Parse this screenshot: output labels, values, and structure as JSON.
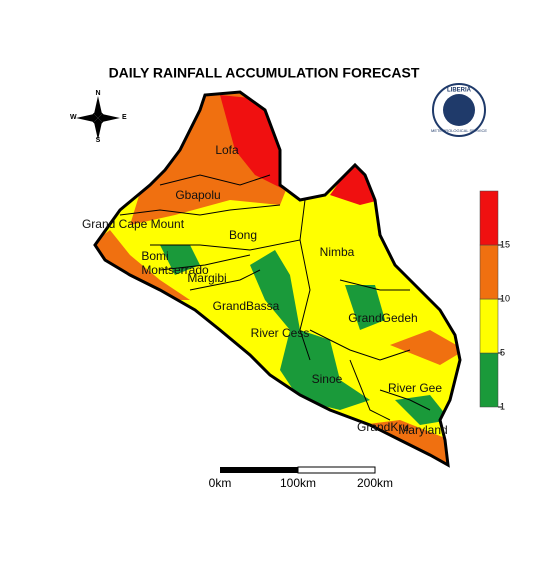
{
  "title": "DAILY RAINFALL ACCUMULATION FORECAST",
  "compass": {
    "north": "N",
    "south": "S",
    "east": "E",
    "west": "W"
  },
  "logo": {
    "top": "LIBERIA",
    "bottom": "METEOROLOGICAL SERVICE"
  },
  "counties": [
    "Lofa",
    "Gbapolu",
    "Grand Cape Mount",
    "Bong",
    "Nimba",
    "Bomi",
    "Montserrado",
    "Margibi",
    "GrandBassa",
    "River Cess",
    "GrandGedeh",
    "Sinoe",
    "River Gee",
    "GrandKru",
    "Maryland"
  ],
  "legend": {
    "ticks": [
      1,
      5,
      10,
      15
    ],
    "colors": [
      "#1a9a3a",
      "#ffff00",
      "#f07010",
      "#f01010"
    ]
  },
  "scale_bar": [
    "0km",
    "100km",
    "200km"
  ]
}
